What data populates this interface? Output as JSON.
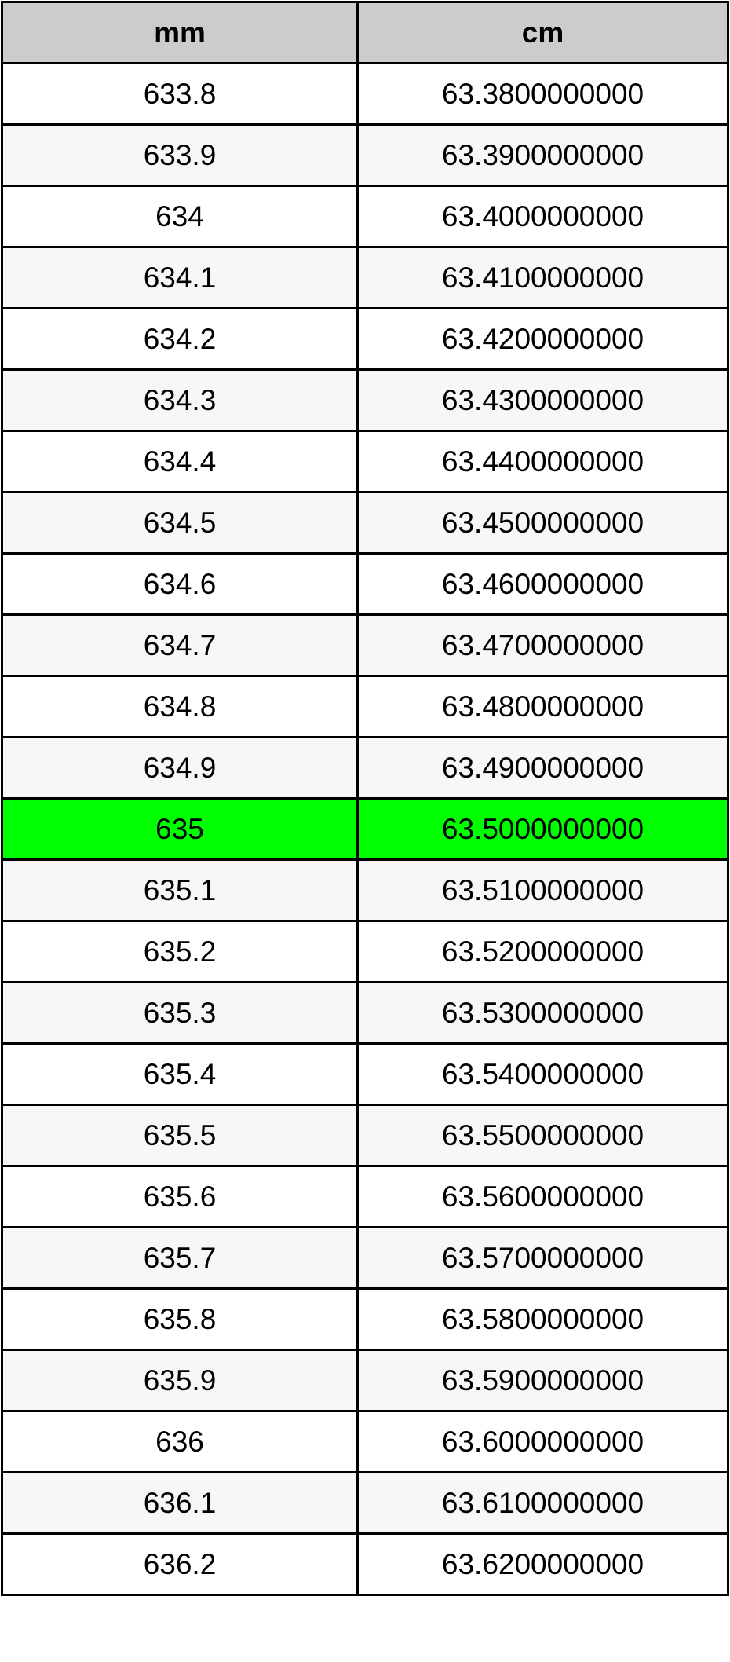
{
  "table": {
    "headers": [
      "mm",
      "cm"
    ],
    "highlight_color": "#00ff00",
    "highlighted_row": 12,
    "rows": [
      [
        "633.8",
        "63.3800000000"
      ],
      [
        "633.9",
        "63.3900000000"
      ],
      [
        "634",
        "63.4000000000"
      ],
      [
        "634.1",
        "63.4100000000"
      ],
      [
        "634.2",
        "63.4200000000"
      ],
      [
        "634.3",
        "63.4300000000"
      ],
      [
        "634.4",
        "63.4400000000"
      ],
      [
        "634.5",
        "63.4500000000"
      ],
      [
        "634.6",
        "63.4600000000"
      ],
      [
        "634.7",
        "63.4700000000"
      ],
      [
        "634.8",
        "63.4800000000"
      ],
      [
        "634.9",
        "63.4900000000"
      ],
      [
        "635",
        "63.5000000000"
      ],
      [
        "635.1",
        "63.5100000000"
      ],
      [
        "635.2",
        "63.5200000000"
      ],
      [
        "635.3",
        "63.5300000000"
      ],
      [
        "635.4",
        "63.5400000000"
      ],
      [
        "635.5",
        "63.5500000000"
      ],
      [
        "635.6",
        "63.5600000000"
      ],
      [
        "635.7",
        "63.5700000000"
      ],
      [
        "635.8",
        "63.5800000000"
      ],
      [
        "635.9",
        "63.5900000000"
      ],
      [
        "636",
        "63.6000000000"
      ],
      [
        "636.1",
        "63.6100000000"
      ],
      [
        "636.2",
        "63.6200000000"
      ]
    ]
  }
}
